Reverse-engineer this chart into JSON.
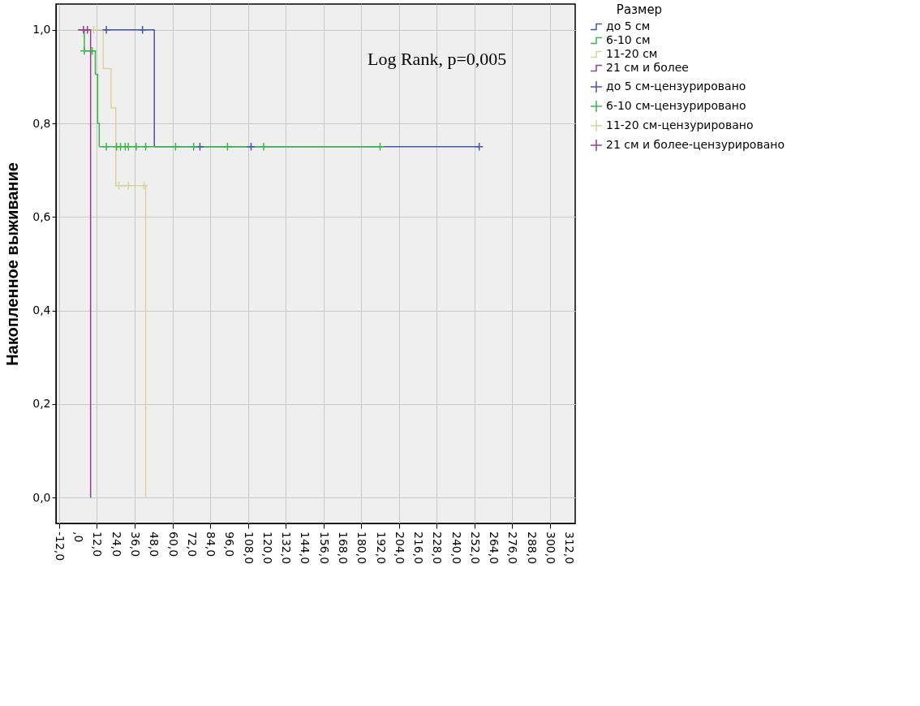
{
  "chart_data": {
    "type": "step",
    "ylabel": "Накопленное выживание",
    "legend_title": "Размер",
    "legend": "right",
    "annotations": [
      "Log Rank, p=0,005"
    ],
    "xlim": [
      -14,
      316
    ],
    "ylim": [
      -0.055,
      1.055
    ],
    "grid": true,
    "xticks": [
      {
        "value": -12,
        "label": "-12,0"
      },
      {
        "value": 0,
        "label": ",0"
      },
      {
        "value": 12,
        "label": "12,0"
      },
      {
        "value": 24,
        "label": "24,0"
      },
      {
        "value": 36,
        "label": "36,0"
      },
      {
        "value": 48,
        "label": "48,0"
      },
      {
        "value": 60,
        "label": "60,0"
      },
      {
        "value": 72,
        "label": "72,0"
      },
      {
        "value": 84,
        "label": "84,0"
      },
      {
        "value": 96,
        "label": "96,0"
      },
      {
        "value": 108,
        "label": "108,0"
      },
      {
        "value": 120,
        "label": "120,0"
      },
      {
        "value": 132,
        "label": "132,0"
      },
      {
        "value": 144,
        "label": "144,0"
      },
      {
        "value": 156,
        "label": "156,0"
      },
      {
        "value": 168,
        "label": "168,0"
      },
      {
        "value": 180,
        "label": "180,0"
      },
      {
        "value": 192,
        "label": "192,0"
      },
      {
        "value": 204,
        "label": "204,0"
      },
      {
        "value": 216,
        "label": "216,0"
      },
      {
        "value": 228,
        "label": "228,0"
      },
      {
        "value": 240,
        "label": "240,0"
      },
      {
        "value": 252,
        "label": "252,0"
      },
      {
        "value": 264,
        "label": "264,0"
      },
      {
        "value": 276,
        "label": "276,0"
      },
      {
        "value": 288,
        "label": "288,0"
      },
      {
        "value": 300,
        "label": "300,0"
      },
      {
        "value": 312,
        "label": "312,0"
      }
    ],
    "yticks": [
      {
        "value": 0,
        "label": "0,0"
      },
      {
        "value": 0.2,
        "label": "0,2"
      },
      {
        "value": 0.4,
        "label": "0,4"
      },
      {
        "value": 0.6,
        "label": "0,6"
      },
      {
        "value": 0.8,
        "label": "0,8"
      },
      {
        "value": 1,
        "label": "1,0"
      }
    ],
    "series": [
      {
        "name": "до 5 см",
        "type": "step",
        "color": "#4a569e",
        "x": [
          0,
          48.5,
          255
        ],
        "values": [
          1,
          0.75,
          0.75
        ]
      },
      {
        "name": "6-10 см",
        "type": "step",
        "color": "#3db54a",
        "x": [
          0,
          4,
          11,
          12.5,
          13.5,
          192
        ],
        "values": [
          1,
          0.955,
          0.905,
          0.8,
          0.75,
          0.75
        ]
      },
      {
        "name": "11-20 см",
        "type": "step",
        "color": "#d9d39c",
        "x": [
          0,
          16,
          21,
          24,
          43
        ],
        "values": [
          1,
          0.917,
          0.833,
          0.667,
          0
        ]
      },
      {
        "name": "21 см и более",
        "type": "step",
        "color": "#9a3d8e",
        "x": [
          0,
          8
        ],
        "values": [
          1,
          0
        ]
      },
      {
        "name": "до 5 см-цензурировано",
        "type": "scatter",
        "marker": "cross",
        "color": "#4a569e",
        "x": [
          18,
          41,
          77.5,
          110,
          255
        ],
        "values": [
          1,
          1,
          0.75,
          0.75,
          0.75
        ]
      },
      {
        "name": "6-10 см-цензурировано",
        "type": "scatter",
        "marker": "cross",
        "color": "#3db54a",
        "x": [
          4,
          9,
          18,
          24.5,
          27,
          30,
          32,
          37,
          43,
          62,
          73.5,
          95,
          118,
          192
        ],
        "values": [
          0.955,
          0.955,
          0.75,
          0.75,
          0.75,
          0.75,
          0.75,
          0.75,
          0.75,
          0.75,
          0.75,
          0.75,
          0.75,
          0.75
        ]
      },
      {
        "name": "11-20 см-цензурировано",
        "type": "scatter",
        "marker": "cross",
        "color": "#d9d39c",
        "x": [
          10,
          26,
          32,
          42
        ],
        "values": [
          1,
          0.667,
          0.667,
          0.667
        ]
      },
      {
        "name": "21 см и более-цензурировано",
        "type": "scatter",
        "marker": "cross",
        "color": "#9a3d8e",
        "x": [
          3.5,
          6
        ],
        "values": [
          1,
          1
        ]
      }
    ]
  }
}
